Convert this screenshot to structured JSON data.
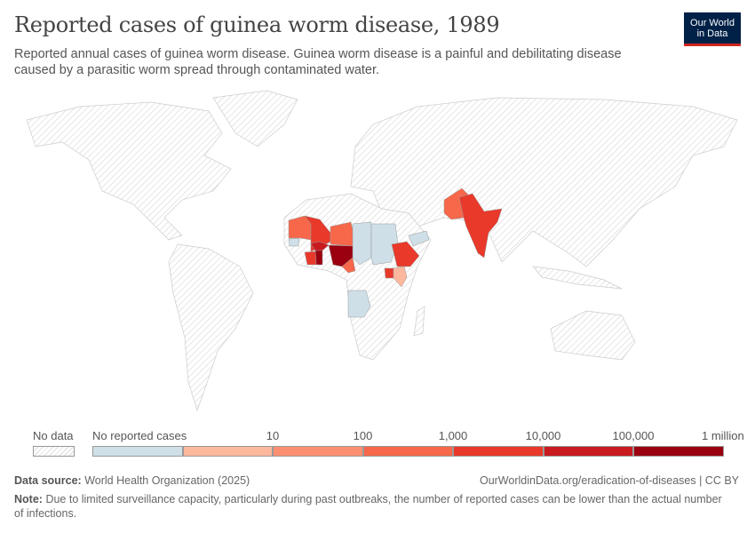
{
  "header": {
    "title": "Reported cases of guinea worm disease, 1989",
    "subtitle": "Reported annual cases of guinea worm disease. Guinea worm disease is a painful and debilitating disease caused by a parasitic worm spread through contaminated water.",
    "logo_line1": "Our World",
    "logo_line2": "in Data"
  },
  "legend": {
    "no_data": "No data",
    "bins": [
      {
        "label": "No reported cases",
        "color": "#cfdfe7"
      },
      {
        "label": "",
        "color": "#fcb89d"
      },
      {
        "label": "10",
        "color": "#fb8f6f"
      },
      {
        "label": "100",
        "color": "#f7674a"
      },
      {
        "label": "1,000",
        "color": "#e8392b"
      },
      {
        "label": "10,000",
        "color": "#c81a1f"
      },
      {
        "label": "100,000",
        "color": "#9a0010"
      }
    ],
    "end_label": "1 million"
  },
  "map": {
    "no_data_color": "#e0e0e0",
    "countries": [
      {
        "name": "Mauritania",
        "bin": 3
      },
      {
        "name": "Mali",
        "bin": 4
      },
      {
        "name": "Niger",
        "bin": 3
      },
      {
        "name": "Chad",
        "bin": 0
      },
      {
        "name": "Sudan",
        "bin": 0
      },
      {
        "name": "Nigeria",
        "bin": 6
      },
      {
        "name": "Ghana",
        "bin": 6
      },
      {
        "name": "Burkina Faso",
        "bin": 5
      },
      {
        "name": "Cote d'Ivoire",
        "bin": 4
      },
      {
        "name": "Senegal",
        "bin": 0
      },
      {
        "name": "Cameroon",
        "bin": 3
      },
      {
        "name": "Ethiopia",
        "bin": 4
      },
      {
        "name": "Uganda",
        "bin": 4
      },
      {
        "name": "Kenya",
        "bin": 1
      },
      {
        "name": "Yemen",
        "bin": 0
      },
      {
        "name": "Angola",
        "bin": 0
      },
      {
        "name": "Pakistan",
        "bin": 3
      },
      {
        "name": "India",
        "bin": 4
      }
    ]
  },
  "footer": {
    "source_label": "Data source:",
    "source": "World Health Organization (2025)",
    "url": "OurWorldinData.org/eradication-of-diseases | CC BY",
    "note_label": "Note:",
    "note": "Due to limited surveillance capacity, particularly during past outbreaks, the number of reported cases can be lower than the actual number of infections."
  }
}
